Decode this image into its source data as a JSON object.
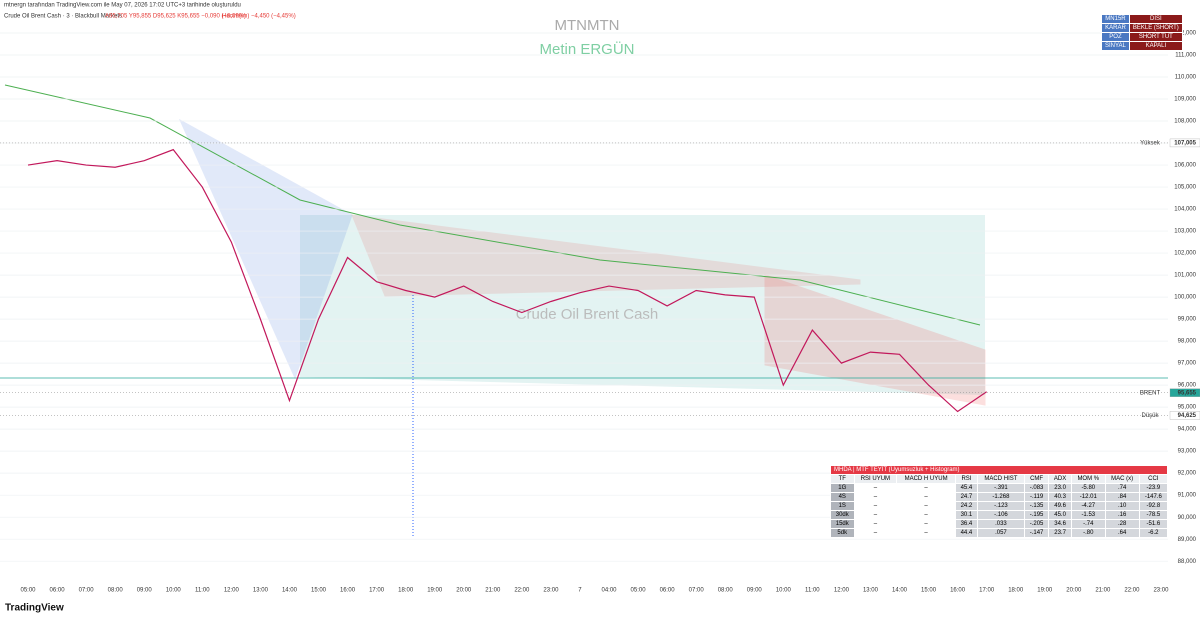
{
  "header": {
    "credit": "mtnergn tarafından TradingView.com ile May 07, 2026 17:02 UTC+3 tarihinde oluşturuldu",
    "symbol": "Crude Oil Brent Cash · 3 · Blackbull Markets",
    "ohlc": "A95,705 Y95,855 D95,625 K95,655 −0,090 (−0,09%)",
    "volume": "Hacim(im) −4,450 (−4,45%)",
    "brand": "TradingView"
  },
  "watermark": {
    "line1": "MTNMTN",
    "line2": "Metin ERGÜN",
    "symbol": "Crude Oil Brent Cash"
  },
  "status_table": {
    "rows": [
      [
        "MN15R",
        "DİSİ"
      ],
      [
        "KARAR",
        "BEKLE (SHORT)"
      ],
      [
        "POZ",
        "SHORT TUT"
      ],
      [
        "SİNYAL",
        "KAPALI"
      ]
    ]
  },
  "mtf_table": {
    "title": "MHDA | MTF TEYİT (Uyumsuzluk + Histogram)",
    "columns": [
      "TF",
      "RSI UYUM",
      "MACD H UYUM",
      "RSI",
      "MACD HIST",
      "CMF",
      "ADX",
      "MOM %",
      "MAC (x)",
      "CCI"
    ],
    "rows": [
      [
        "1G",
        "–",
        "–",
        "45.4",
        "-.391",
        "-.083",
        "23.0",
        "-5.80",
        ".74",
        "-23.9"
      ],
      [
        "4S",
        "–",
        "–",
        "24.7",
        "-1.268",
        "-.119",
        "40.3",
        "-12.01",
        ".84",
        "-147.6"
      ],
      [
        "1S",
        "–",
        "–",
        "24.2",
        "-.123",
        "-.135",
        "49.6",
        "-4.27",
        ".10",
        "-92.8"
      ],
      [
        "30dk",
        "–",
        "–",
        "30.1",
        "-.106",
        "-.195",
        "45.0",
        "-1.53",
        ".16",
        "-78.5"
      ],
      [
        "15dk",
        "–",
        "–",
        "36.4",
        ".033",
        "-.205",
        "34.6",
        "-.74",
        ".28",
        "-51.6"
      ],
      [
        "5dk",
        "–",
        "–",
        "44.4",
        ".057",
        "-.147",
        "23.7",
        "-.80",
        ".64",
        "-6.2"
      ]
    ]
  },
  "chart_data": {
    "type": "line",
    "color": "#c2185b",
    "categories": [
      "05:00",
      "06:00",
      "07:00",
      "08:00",
      "09:00",
      "10:00",
      "11:00",
      "12:00",
      "13:00",
      "14:00",
      "15:00",
      "16:00",
      "17:00",
      "18:00",
      "19:00",
      "20:00",
      "21:00",
      "22:00",
      "23:00",
      "7",
      "04:00",
      "05:00",
      "06:00",
      "07:00",
      "08:00",
      "09:00",
      "10:00",
      "11:00",
      "12:00",
      "13:00",
      "14:00",
      "15:00",
      "16:00",
      "17:00",
      "18:00",
      "19:00",
      "20:00",
      "21:00",
      "22:00",
      "23:00"
    ],
    "values": [
      106.0,
      106.2,
      106.0,
      105.9,
      106.2,
      106.7,
      105.0,
      102.5,
      99.0,
      95.3,
      99.0,
      101.8,
      100.7,
      100.3,
      100.0,
      100.5,
      99.8,
      99.3,
      99.8,
      100.2,
      100.5,
      100.3,
      99.6,
      100.3,
      100.1,
      100.0,
      96.0,
      98.5,
      97.0,
      97.5,
      97.4,
      96.0,
      94.8,
      95.7,
      null,
      null,
      null,
      null,
      null,
      null
    ],
    "ylim": [
      86.6,
      112.5
    ],
    "yticks": [
      {
        "value": 88,
        "label": "88,000"
      },
      {
        "value": 89,
        "label": "89,000"
      },
      {
        "value": 90,
        "label": "90,000"
      },
      {
        "value": 91,
        "label": "91,000"
      },
      {
        "value": 92,
        "label": "92,000"
      },
      {
        "value": 93,
        "label": "93,000"
      },
      {
        "value": 94,
        "label": "94,000"
      },
      {
        "value": 95,
        "label": "95,000"
      },
      {
        "value": 96,
        "label": "96,000"
      },
      {
        "value": 97,
        "label": "97,000"
      },
      {
        "value": 98,
        "label": "98,000"
      },
      {
        "value": 99,
        "label": "99,000"
      },
      {
        "value": 100,
        "label": "100,000"
      },
      {
        "value": 101,
        "label": "101,000"
      },
      {
        "value": 102,
        "label": "102,000"
      },
      {
        "value": 103,
        "label": "103,000"
      },
      {
        "value": 104,
        "label": "104,000"
      },
      {
        "value": 105,
        "label": "105,000"
      },
      {
        "value": 106,
        "label": "106,000"
      },
      {
        "value": 107,
        "label": "107,000"
      },
      {
        "value": 108,
        "label": "108,000"
      },
      {
        "value": 109,
        "label": "109,000"
      },
      {
        "value": 110,
        "label": "110,000"
      },
      {
        "value": 111,
        "label": "111,000"
      },
      {
        "value": 112,
        "label": "112,000"
      }
    ],
    "grid": true,
    "price_tags": [
      {
        "text": "Yüksek",
        "value": 107.005,
        "label": "107,005",
        "color": "#ffffff"
      },
      {
        "text": "BRENT",
        "value": 95.655,
        "label": "95,655",
        "color": "#26a69a"
      },
      {
        "text": "Düşük",
        "value": 94.625,
        "label": "94,625",
        "color": "#ffffff"
      }
    ]
  }
}
